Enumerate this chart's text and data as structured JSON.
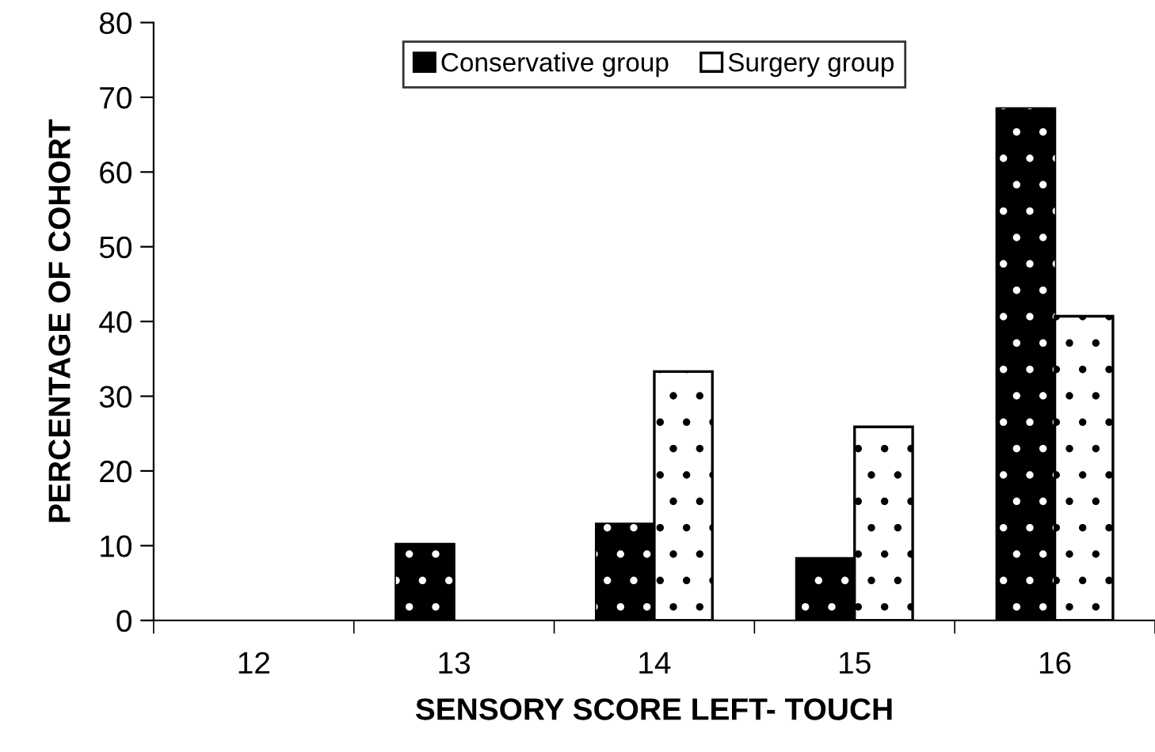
{
  "chart_data": {
    "type": "bar",
    "xlabel": "SENSORY SCORE LEFT- TOUCH",
    "ylabel": "PERCENTAGE OF COHORT",
    "categories": [
      "12",
      "13",
      "14",
      "15",
      "16"
    ],
    "series": [
      {
        "name": "Conservative group",
        "color": "#000000",
        "values": [
          0,
          10.2,
          12.9,
          8.3,
          68.5
        ]
      },
      {
        "name": "Surgery group",
        "color": "#ffffff",
        "values": [
          0,
          0,
          33.3,
          25.9,
          40.7
        ]
      }
    ],
    "ylim": [
      0,
      80
    ],
    "yticks": [
      0,
      10,
      20,
      30,
      40,
      50,
      60,
      70,
      80
    ],
    "grid": false,
    "legend": "top"
  }
}
